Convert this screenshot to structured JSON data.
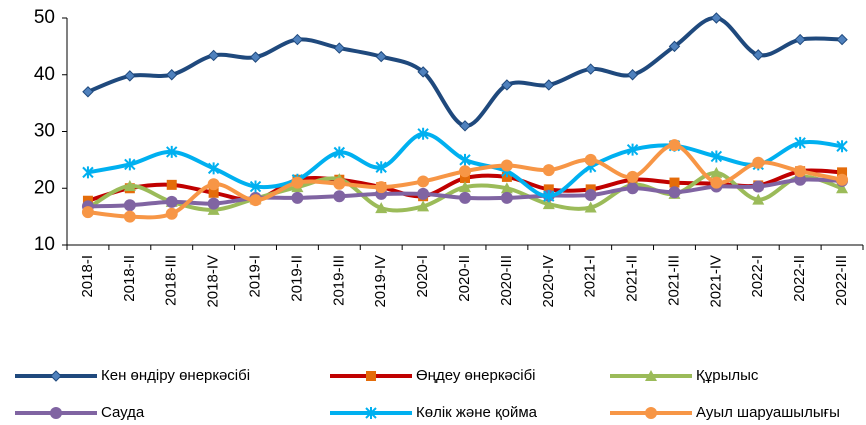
{
  "chart_data": {
    "type": "line",
    "categories": [
      "2018-I",
      "2018-II",
      "2018-III",
      "2018-IV",
      "2019-I",
      "2019-II",
      "2019-III",
      "2019-IV",
      "2020-I",
      "2020-II",
      "2020-III",
      "2020-IV",
      "2021-I",
      "2021-II",
      "2021-III",
      "2021-IV",
      "2022-I",
      "2022-II",
      "2022-III"
    ],
    "series": [
      {
        "name": "Кен өндіру өнеркәсібі",
        "color": "#1f497d",
        "marker_color": "#4f81bd",
        "marker": "diamond",
        "values": [
          37,
          39.8,
          40,
          43.4,
          43.1,
          46.2,
          44.7,
          43.2,
          40.5,
          31,
          38.2,
          38.2,
          41,
          40,
          45,
          50,
          43.5,
          46.2,
          46.2
        ]
      },
      {
        "name": "Өңдеу өнеркәсібі",
        "color": "#c00000",
        "marker_color": "#e46c0a",
        "marker": "square",
        "values": [
          17.8,
          20,
          20.6,
          19.2,
          18,
          21.5,
          21.5,
          20.2,
          18.6,
          21.8,
          22,
          19.8,
          19.8,
          21.5,
          21,
          20.8,
          20.5,
          23,
          22.8
        ]
      },
      {
        "name": "Құрылыс",
        "color": "#9bbb59",
        "marker_color": "#9bbb59",
        "marker": "triangle",
        "values": [
          16.5,
          20.4,
          17.6,
          16.2,
          18.2,
          20.2,
          21.6,
          16.5,
          16.8,
          20.2,
          20,
          17.2,
          16.6,
          20.6,
          19,
          22.7,
          18,
          22,
          20
        ]
      },
      {
        "name": "Сауда",
        "color": "#8064a2",
        "marker_color": "#8064a2",
        "marker": "circle",
        "values": [
          16.8,
          17,
          17.6,
          17.3,
          18.3,
          18.3,
          18.6,
          19,
          19,
          18.3,
          18.3,
          18.7,
          18.8,
          20,
          19.3,
          20.3,
          20.3,
          21.5,
          21.3
        ]
      },
      {
        "name": "Көлік және қойма",
        "color": "#00b0f0",
        "marker_color": "#00b0f0",
        "marker": "star",
        "values": [
          22.8,
          24.2,
          26.4,
          23.5,
          20.3,
          21.5,
          26.3,
          23.7,
          29.6,
          25,
          23,
          18.6,
          23.8,
          26.8,
          27.5,
          25.6,
          24.2,
          28,
          27.4
        ]
      },
      {
        "name": "Ауыл шаруашылығы",
        "color": "#f79646",
        "marker_color": "#f79646",
        "marker": "circle",
        "values": [
          15.8,
          15,
          15.5,
          20.7,
          17.9,
          21,
          20.8,
          20.2,
          21.2,
          23,
          24,
          23.2,
          25,
          22,
          27.6,
          21,
          24.5,
          23,
          21.5
        ]
      }
    ],
    "ylim": [
      10,
      50
    ],
    "yticks": [
      10,
      20,
      30,
      40,
      50
    ],
    "legend": "bottom"
  }
}
